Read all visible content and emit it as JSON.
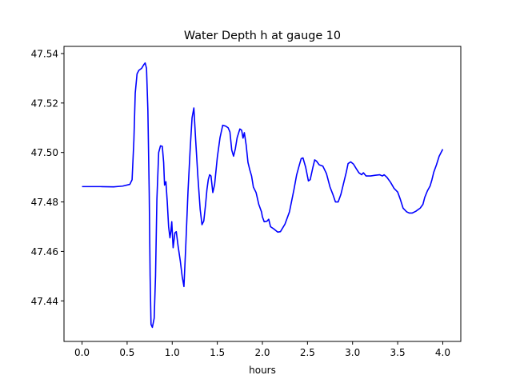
{
  "chart_data": {
    "type": "line",
    "title": "Water Depth h at gauge 10",
    "xlabel": "hours",
    "ylabel": "",
    "xlim": [
      -0.2,
      4.2
    ],
    "ylim": [
      47.4236,
      47.5429
    ],
    "x_ticks": [
      0.0,
      0.5,
      1.0,
      1.5,
      2.0,
      2.5,
      3.0,
      3.5,
      4.0
    ],
    "x_tick_labels": [
      "0.0",
      "0.5",
      "1.0",
      "1.5",
      "2.0",
      "2.5",
      "3.0",
      "3.5",
      "4.0"
    ],
    "y_ticks": [
      47.44,
      47.46,
      47.48,
      47.5,
      47.52,
      47.54
    ],
    "y_tick_labels": [
      "47.44",
      "47.46",
      "47.48",
      "47.50",
      "47.52",
      "47.54"
    ],
    "grid": false,
    "series": [
      {
        "color": "#0000ff",
        "points": [
          [
            0.0,
            47.4862
          ],
          [
            0.2,
            47.4862
          ],
          [
            0.35,
            47.4861
          ],
          [
            0.45,
            47.4864
          ],
          [
            0.53,
            47.4871
          ],
          [
            0.555,
            47.489
          ],
          [
            0.575,
            47.505
          ],
          [
            0.59,
            47.524
          ],
          [
            0.61,
            47.5318
          ],
          [
            0.63,
            47.5332
          ],
          [
            0.66,
            47.534
          ],
          [
            0.685,
            47.5355
          ],
          [
            0.7,
            47.5362
          ],
          [
            0.715,
            47.534
          ],
          [
            0.73,
            47.5172
          ],
          [
            0.745,
            47.4835
          ],
          [
            0.755,
            47.45
          ],
          [
            0.765,
            47.4305
          ],
          [
            0.78,
            47.4293
          ],
          [
            0.8,
            47.433
          ],
          [
            0.815,
            47.45
          ],
          [
            0.83,
            47.481
          ],
          [
            0.85,
            47.5
          ],
          [
            0.87,
            47.5027
          ],
          [
            0.89,
            47.5025
          ],
          [
            0.905,
            47.496
          ],
          [
            0.915,
            47.4868
          ],
          [
            0.93,
            47.4882
          ],
          [
            0.945,
            47.48
          ],
          [
            0.96,
            47.47
          ],
          [
            0.975,
            47.4655
          ],
          [
            0.985,
            47.468
          ],
          [
            0.995,
            47.472
          ],
          [
            1.01,
            47.4615
          ],
          [
            1.03,
            47.4675
          ],
          [
            1.045,
            47.468
          ],
          [
            1.065,
            47.4622
          ],
          [
            1.09,
            47.456
          ],
          [
            1.11,
            47.45
          ],
          [
            1.13,
            47.4458
          ],
          [
            1.15,
            47.462
          ],
          [
            1.175,
            47.4842
          ],
          [
            1.2,
            47.502
          ],
          [
            1.22,
            47.514
          ],
          [
            1.24,
            47.518
          ],
          [
            1.26,
            47.505
          ],
          [
            1.285,
            47.49
          ],
          [
            1.31,
            47.477
          ],
          [
            1.33,
            47.4708
          ],
          [
            1.35,
            47.4723
          ],
          [
            1.37,
            47.479
          ],
          [
            1.385,
            47.485
          ],
          [
            1.4,
            47.489
          ],
          [
            1.415,
            47.491
          ],
          [
            1.43,
            47.4905
          ],
          [
            1.45,
            47.4838
          ],
          [
            1.47,
            47.487
          ],
          [
            1.5,
            47.498
          ],
          [
            1.53,
            47.506
          ],
          [
            1.56,
            47.511
          ],
          [
            1.59,
            47.5107
          ],
          [
            1.62,
            47.51
          ],
          [
            1.64,
            47.5083
          ],
          [
            1.66,
            47.501
          ],
          [
            1.68,
            47.4985
          ],
          [
            1.7,
            47.5015
          ],
          [
            1.72,
            47.506
          ],
          [
            1.75,
            47.5095
          ],
          [
            1.77,
            47.509
          ],
          [
            1.785,
            47.5058
          ],
          [
            1.8,
            47.508
          ],
          [
            1.82,
            47.503
          ],
          [
            1.84,
            47.496
          ],
          [
            1.86,
            47.493
          ],
          [
            1.88,
            47.4905
          ],
          [
            1.9,
            47.486
          ],
          [
            1.93,
            47.4838
          ],
          [
            1.96,
            47.479
          ],
          [
            1.99,
            47.476
          ],
          [
            2.0,
            47.474
          ],
          [
            2.02,
            47.472
          ],
          [
            2.05,
            47.4722
          ],
          [
            2.07,
            47.473
          ],
          [
            2.09,
            47.47
          ],
          [
            2.13,
            47.469
          ],
          [
            2.17,
            47.4678
          ],
          [
            2.2,
            47.468
          ],
          [
            2.25,
            47.471
          ],
          [
            2.3,
            47.476
          ],
          [
            2.35,
            47.485
          ],
          [
            2.38,
            47.491
          ],
          [
            2.41,
            47.495
          ],
          [
            2.43,
            47.4975
          ],
          [
            2.45,
            47.4978
          ],
          [
            2.48,
            47.494
          ],
          [
            2.51,
            47.4885
          ],
          [
            2.53,
            47.489
          ],
          [
            2.56,
            47.494
          ],
          [
            2.58,
            47.497
          ],
          [
            2.6,
            47.4965
          ],
          [
            2.63,
            47.495
          ],
          [
            2.67,
            47.4945
          ],
          [
            2.71,
            47.4915
          ],
          [
            2.75,
            47.486
          ],
          [
            2.78,
            47.4832
          ],
          [
            2.81,
            47.48
          ],
          [
            2.84,
            47.48
          ],
          [
            2.87,
            47.483
          ],
          [
            2.9,
            47.4875
          ],
          [
            2.93,
            47.492
          ],
          [
            2.95,
            47.4955
          ],
          [
            2.98,
            47.4962
          ],
          [
            3.01,
            47.4953
          ],
          [
            3.04,
            47.4935
          ],
          [
            3.07,
            47.4918
          ],
          [
            3.1,
            47.491
          ],
          [
            3.12,
            47.4918
          ],
          [
            3.15,
            47.4905
          ],
          [
            3.2,
            47.4905
          ],
          [
            3.25,
            47.4908
          ],
          [
            3.3,
            47.491
          ],
          [
            3.33,
            47.4905
          ],
          [
            3.35,
            47.491
          ],
          [
            3.38,
            47.49
          ],
          [
            3.42,
            47.488
          ],
          [
            3.46,
            47.4855
          ],
          [
            3.5,
            47.484
          ],
          [
            3.53,
            47.481
          ],
          [
            3.56,
            47.4775
          ],
          [
            3.6,
            47.476
          ],
          [
            3.63,
            47.4755
          ],
          [
            3.66,
            47.4755
          ],
          [
            3.7,
            47.4762
          ],
          [
            3.75,
            47.4775
          ],
          [
            3.78,
            47.479
          ],
          [
            3.8,
            47.4818
          ],
          [
            3.83,
            47.4845
          ],
          [
            3.86,
            47.4865
          ],
          [
            3.88,
            47.489
          ],
          [
            3.9,
            47.492
          ],
          [
            3.93,
            47.495
          ],
          [
            3.96,
            47.4985
          ],
          [
            4.0,
            47.5013
          ]
        ]
      }
    ]
  }
}
